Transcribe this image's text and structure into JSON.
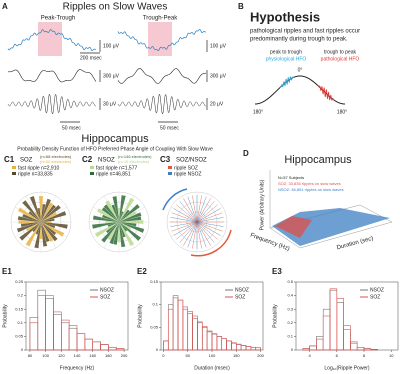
{
  "figure": {
    "A": {
      "label": "A",
      "title": "Ripples on Slow Waves",
      "left": "Peak-Trough",
      "right": "Trough-Peak",
      "scales": [
        "100 μV",
        "200 msec",
        "300 μV",
        "30 μV",
        "50 msec",
        "100 μV",
        "300 μV",
        "20 μV",
        "50 msec"
      ]
    },
    "B": {
      "label": "B",
      "title": "Hypothesis",
      "text": [
        "pathological ripples and fast ripples occur",
        "predominantly during trough to peak."
      ],
      "left_title": "peak to trough",
      "left_sub": "physiological HFO",
      "right_title": "trough to peak",
      "right_sub": "pathological HFO",
      "angles": [
        "0°",
        "180°",
        "180°"
      ]
    },
    "C": {
      "title": "Hippocampus",
      "subtitle": "Probability Density Function of HFO Preferred Phase Angle of Coupling With Slow Wave",
      "panels": [
        {
          "label": "C1",
          "group": "SOZ",
          "notes": [
            "(n=68 electrodes)",
            "(n=20 electrodes)"
          ],
          "legend": [
            "fast ripple n=2,910",
            "ripple n=33,835"
          ]
        },
        {
          "label": "C2",
          "group": "NSOZ",
          "notes": [
            "(n=146 electrodes)",
            "(n=19 electrodes)"
          ],
          "legend": [
            "fast ripple n=1,577",
            "ripple n=46,851"
          ]
        },
        {
          "label": "C3",
          "group": "SOZ/NSOZ",
          "legend": [
            "ripple SOZ",
            "ripple NSOZ"
          ]
        }
      ]
    },
    "D": {
      "label": "D",
      "title": "Hippocampus",
      "notes": [
        "N=57 Subjects",
        "SOZ: 33,835 ripples on slow waves",
        "NSOZ: 46,851 ripples on slow waves"
      ],
      "zlabel": "Power (Arbitrary Units)",
      "xlabel": "Frequency (Hz)",
      "ylabel": "Duration (sec)"
    }
  },
  "chart_data": [
    {
      "type": "histogram",
      "label": "E1",
      "xlabel": "Frequency (Hz)",
      "ylabel": "Probability",
      "bins": [
        80,
        90,
        100,
        110,
        120,
        130,
        140,
        150,
        160,
        170,
        180,
        190,
        200
      ],
      "series": [
        {
          "name": "NSOZ",
          "color": "#777777",
          "values": [
            0.12,
            0.22,
            0.19,
            0.13,
            0.1,
            0.08,
            0.06,
            0.04,
            0.03,
            0.02,
            0.01,
            0.005
          ]
        },
        {
          "name": "SOZ",
          "color": "#d9534f",
          "values": [
            0.1,
            0.2,
            0.2,
            0.14,
            0.11,
            0.09,
            0.06,
            0.04,
            0.03,
            0.02,
            0.01,
            0.005
          ]
        }
      ],
      "xlim": [
        75,
        205
      ],
      "ylim": [
        0,
        0.25
      ],
      "xticks": [
        80,
        100,
        120,
        140,
        160,
        180,
        200
      ],
      "yticks": [
        0,
        0.05,
        0.1,
        0.15,
        0.2,
        0.25
      ]
    },
    {
      "type": "histogram",
      "label": "E2",
      "xlabel": "Duration (msec)",
      "ylabel": "Probability",
      "bins": [
        0,
        10,
        20,
        30,
        40,
        50,
        60,
        70,
        80,
        90,
        100,
        110,
        120,
        130,
        140,
        150,
        160,
        170,
        180,
        190,
        200
      ],
      "series": [
        {
          "name": "NSOZ",
          "color": "#777777",
          "values": [
            0.02,
            0.1,
            0.12,
            0.11,
            0.09,
            0.08,
            0.07,
            0.06,
            0.05,
            0.04,
            0.035,
            0.03,
            0.025,
            0.02,
            0.015,
            0.012,
            0.01,
            0.008,
            0.006,
            0.005
          ]
        },
        {
          "name": "SOZ",
          "color": "#d9534f",
          "values": [
            0.02,
            0.09,
            0.115,
            0.11,
            0.095,
            0.085,
            0.075,
            0.062,
            0.052,
            0.042,
            0.036,
            0.03,
            0.025,
            0.02,
            0.016,
            0.013,
            0.01,
            0.008,
            0.006,
            0.005
          ]
        }
      ],
      "xlim": [
        -5,
        205
      ],
      "ylim": [
        0,
        0.15
      ],
      "xticks": [
        0,
        50,
        100,
        150,
        200
      ],
      "yticks": [
        0,
        0.05,
        0.1,
        0.15
      ]
    },
    {
      "type": "histogram",
      "label": "E3",
      "xlabel": "Log₁₀(Ripple Power)",
      "ylabel": "Probability",
      "bins": [
        3,
        3.5,
        4,
        4.5,
        5,
        5.5,
        6,
        6.5,
        7,
        7.5,
        8,
        8.5,
        9,
        9.5,
        10
      ],
      "series": [
        {
          "name": "NSOZ",
          "color": "#777777",
          "values": [
            0,
            0.01,
            0.03,
            0.1,
            0.3,
            0.44,
            0.35,
            0.15,
            0.05,
            0.02,
            0.01,
            0.005,
            0,
            0
          ]
        },
        {
          "name": "SOZ",
          "color": "#d9534f",
          "values": [
            0,
            0.01,
            0.03,
            0.08,
            0.25,
            0.45,
            0.38,
            0.18,
            0.06,
            0.02,
            0.01,
            0.005,
            0,
            0
          ]
        }
      ],
      "xlim": [
        3,
        10.5
      ],
      "ylim": [
        0,
        0.5
      ],
      "xticks": [
        4,
        6,
        8,
        10
      ],
      "yticks": [
        0,
        0.1,
        0.2,
        0.3,
        0.4,
        0.5
      ]
    }
  ]
}
